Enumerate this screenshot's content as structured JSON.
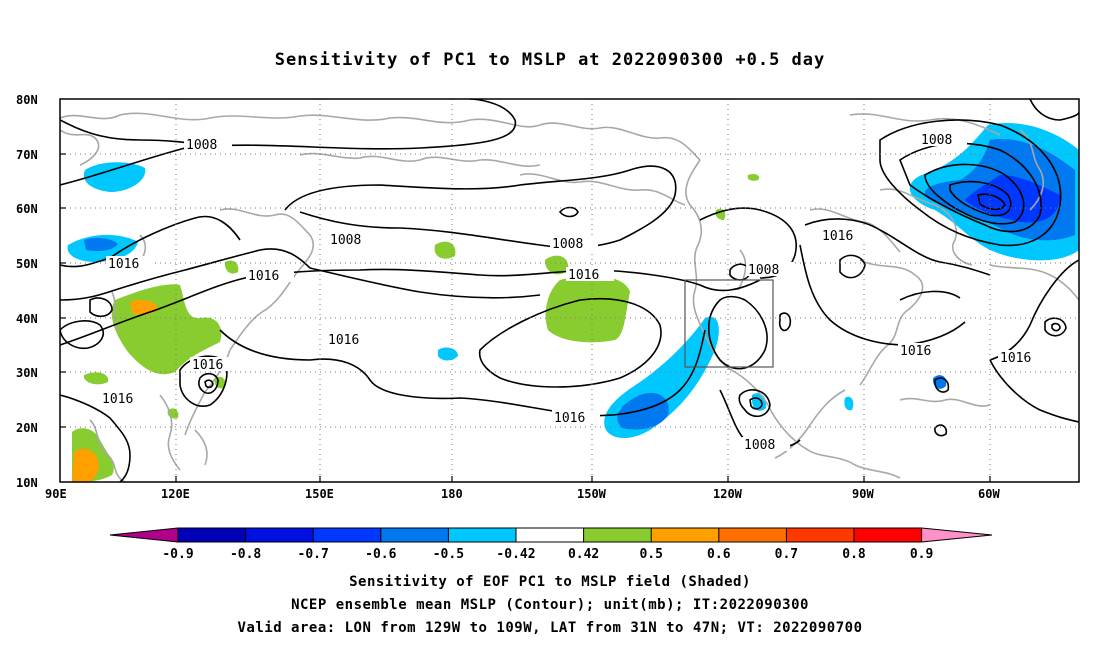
{
  "title": "Sensitivity of PC1 to MSLP at 2022090300 +0.5 day",
  "map": {
    "lat_labels": [
      "80N",
      "70N",
      "60N",
      "50N",
      "40N",
      "30N",
      "20N",
      "10N"
    ],
    "lon_labels": [
      "90E",
      "120E",
      "150E",
      "180",
      "150W",
      "120W",
      "90W",
      "60W"
    ],
    "lon_range": [
      "90E",
      "45W"
    ],
    "lat_range": [
      "10N",
      "80N"
    ],
    "valid_box": {
      "lon": [
        "129W",
        "109W"
      ],
      "lat": [
        "31N",
        "47N"
      ]
    },
    "contour_labels": [
      "1008",
      "1008",
      "1008",
      "1008",
      "1008",
      "1016",
      "1016",
      "1016",
      "1016",
      "1016",
      "1016",
      "1016",
      "1016",
      "1016"
    ],
    "gridlines": "dotted"
  },
  "colorbar": {
    "ticks": [
      "-0.9",
      "-0.8",
      "-0.7",
      "-0.6",
      "-0.5",
      "-0.42",
      "0.42",
      "0.5",
      "0.6",
      "0.7",
      "0.8",
      "0.9"
    ],
    "colors": [
      "#b0008a",
      "#0000b8",
      "#0010e0",
      "#0038ff",
      "#0078f0",
      "#00c8ff",
      "#ffffff",
      "#88cc30",
      "#ffa000",
      "#ff7000",
      "#ff3800",
      "#ff0000",
      "#ff90c8"
    ]
  },
  "captions": [
    "Sensitivity of EOF PC1 to MSLP field (Shaded)",
    "NCEP ensemble mean MSLP (Contour); unit(mb); IT:2022090300",
    "Valid area: LON from 129W to 109W, LAT from 31N to 47N; VT: 2022090700"
  ]
}
